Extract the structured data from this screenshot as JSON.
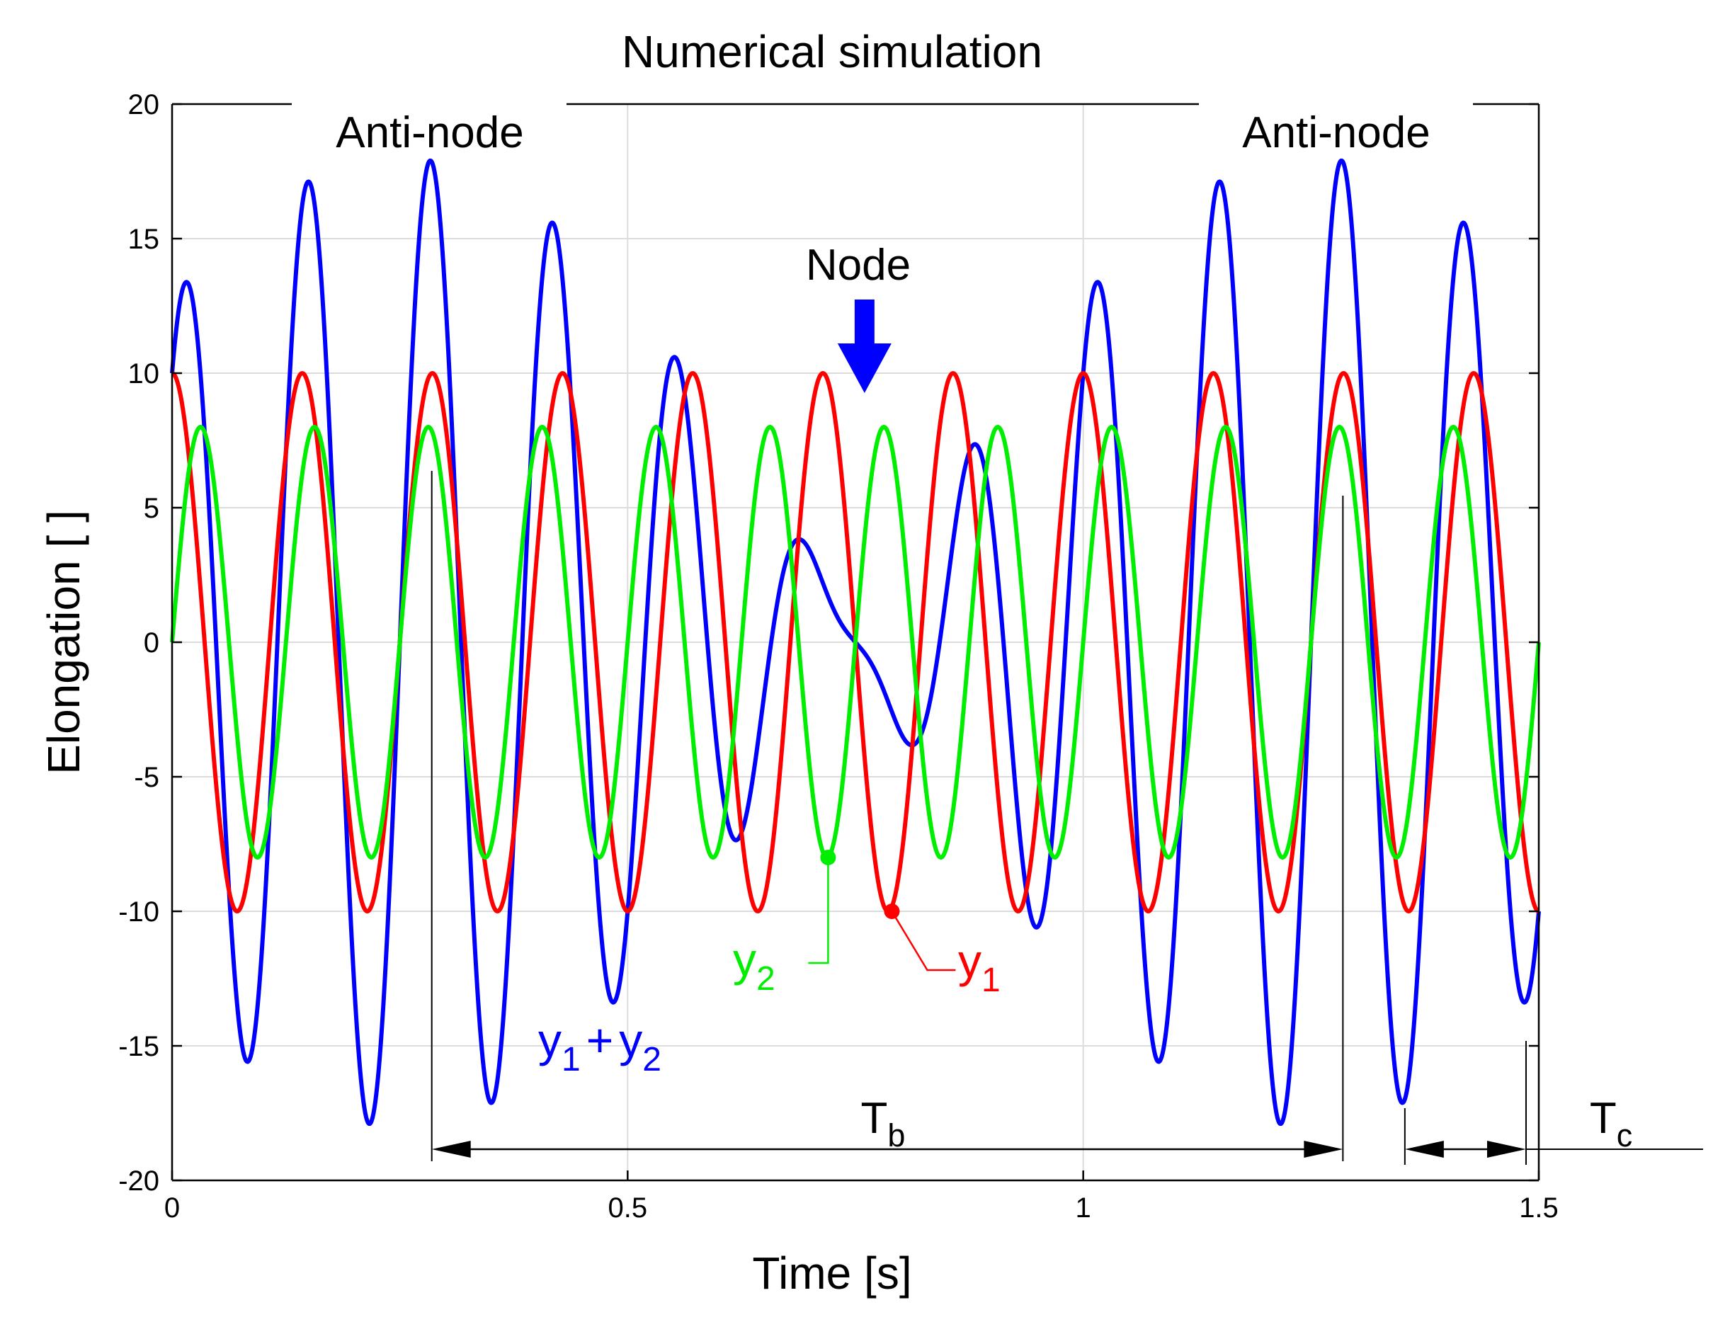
{
  "chart_data": {
    "type": "line",
    "title": "Numerical simulation",
    "xlabel": "Time [s]",
    "ylabel": "Elongation [ ]",
    "xlim": [
      0,
      1.5
    ],
    "ylim": [
      -20,
      20
    ],
    "grid": true,
    "x_ticks": [
      0,
      0.5,
      1,
      1.5
    ],
    "x_tick_labels": [
      "0",
      "0.5",
      "1",
      "1.5"
    ],
    "y_ticks": [
      -20,
      -15,
      -10,
      -5,
      0,
      5,
      10,
      15,
      20
    ],
    "y_tick_labels": [
      "-20",
      "-15",
      "-10",
      "-5",
      "0",
      "5",
      "10",
      "15",
      "20"
    ],
    "series": [
      {
        "name": "y1",
        "label_main": "y",
        "label_sub": "1",
        "color": "#ff0000",
        "function": "cos",
        "amplitude": 10,
        "frequency_hz": 7,
        "phase": 0
      },
      {
        "name": "y2",
        "label_main": "y",
        "label_sub": "2",
        "color": "#00ee00",
        "function": "sin",
        "amplitude": 8,
        "frequency_hz": 8,
        "phase": 0
      },
      {
        "name": "y1 + y2",
        "label_main": "y",
        "label_sub": "1",
        "label_plus": "+",
        "label_main2": "y",
        "label_sub2": "2",
        "color": "#0000ff",
        "function": "sum",
        "of": [
          "y1",
          "y2"
        ]
      }
    ],
    "series_markers": [
      {
        "series": "y2",
        "t": 0.72,
        "value": -8.0
      },
      {
        "series": "y1",
        "t": 0.79,
        "value": -10.0
      }
    ],
    "annotations": {
      "antinode_left": "Anti-node",
      "antinode_right": "Anti-node",
      "node": "Node",
      "node_arrow_t": 0.76,
      "node_arrow_color": "#0000ff",
      "beat_period": {
        "label_main": "T",
        "label_sub": "b",
        "t_start": 0.285,
        "t_end": 1.285
      },
      "carrier_period": {
        "label_main": "T",
        "label_sub": "c",
        "t_start": 1.353,
        "t_end": 1.486
      }
    }
  }
}
